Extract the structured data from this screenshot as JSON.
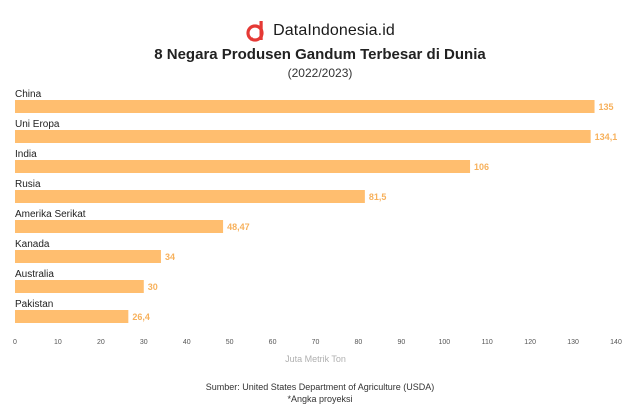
{
  "brand": {
    "name": "DataIndonesia.id",
    "logo_icon": "dataindonesia-logo-icon",
    "logo_color": "#e53935"
  },
  "chart_data": {
    "type": "bar",
    "orientation": "horizontal",
    "title": "8 Negara Produsen Gandum Terbesar di Dunia",
    "subtitle": "(2022/2023)",
    "categories": [
      "China",
      "Uni Eropa",
      "India",
      "Rusia",
      "Amerika Serikat",
      "Kanada",
      "Australia",
      "Pakistan"
    ],
    "values": [
      135,
      134.1,
      106,
      81.5,
      48.47,
      34,
      30,
      26.4
    ],
    "value_labels": [
      "135",
      "134,1",
      "106",
      "81,5",
      "48,47",
      "34",
      "30",
      "26,4"
    ],
    "xlabel": "Juta Metrik Ton",
    "ylabel": "",
    "xlim": [
      0,
      140
    ],
    "xticks": [
      "0",
      "10",
      "20",
      "30",
      "40",
      "50",
      "60",
      "70",
      "80",
      "90",
      "100",
      "110",
      "120",
      "130",
      "140"
    ],
    "grid": false,
    "legend": "none",
    "bar_color": "#ffbe6f",
    "label_color": "#f7b15c",
    "axis_label_color": "#b0b0b0"
  },
  "footer": {
    "source": "Sumber: United States Department of Agriculture (USDA)",
    "note": "*Angka proyeksi"
  }
}
